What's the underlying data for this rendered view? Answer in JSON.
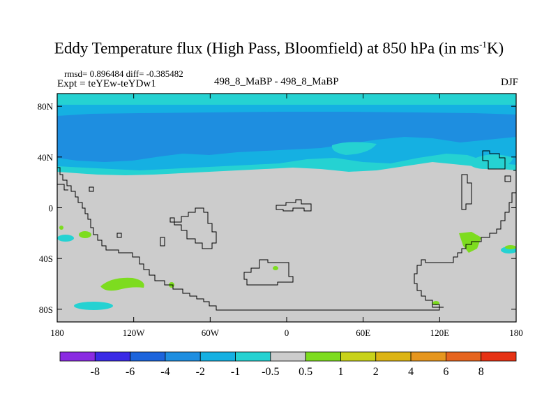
{
  "title_main": "Eddy Temperature flux (High Pass, Bloomfield) at 850 hPa (in ms",
  "title_sup": "-1",
  "title_end": "K)",
  "stats": "rmsd= 0.896484  diff= -0.385482",
  "experiment": "Expt = teYEw-teYDw1",
  "comparison": "498_8_MaBP - 498_8_MaBP",
  "season": "DJF",
  "map": {
    "lon_ticks": [
      {
        "lon": -180,
        "label": "180"
      },
      {
        "lon": -120,
        "label": "120W"
      },
      {
        "lon": -60,
        "label": "60W"
      },
      {
        "lon": 0,
        "label": "0"
      },
      {
        "lon": 60,
        "label": "60E"
      },
      {
        "lon": 120,
        "label": "120E"
      },
      {
        "lon": 180,
        "label": "180"
      }
    ],
    "lat_ticks": [
      {
        "lat": 80,
        "label": "80N"
      },
      {
        "lat": 40,
        "label": "40N"
      },
      {
        "lat": 0,
        "label": "0"
      },
      {
        "lat": -40,
        "label": "40S"
      },
      {
        "lat": -80,
        "label": "80S"
      }
    ],
    "lon_range": [
      -180,
      180
    ],
    "lat_range": [
      -90,
      90
    ]
  },
  "colorbar": {
    "colors": [
      "#8a2be2",
      "#3a2ae6",
      "#1c64dc",
      "#1e8ee0",
      "#15b0e2",
      "#25d2d2",
      "#cccccc",
      "#7ddc1f",
      "#c8d21a",
      "#dcb414",
      "#e6961e",
      "#e6641e",
      "#e63214"
    ],
    "labels": [
      "-8",
      "-6",
      "-4",
      "-2",
      "-1",
      "-0.5",
      "0.5",
      "1",
      "2",
      "4",
      "6",
      "8"
    ]
  },
  "field_colors": {
    "background": "#cccccc",
    "negative_strong": "#1e8ee0",
    "negative_mid": "#15b0e2",
    "negative_weak": "#25d2d2",
    "positive_weak": "#7ddc1f"
  }
}
